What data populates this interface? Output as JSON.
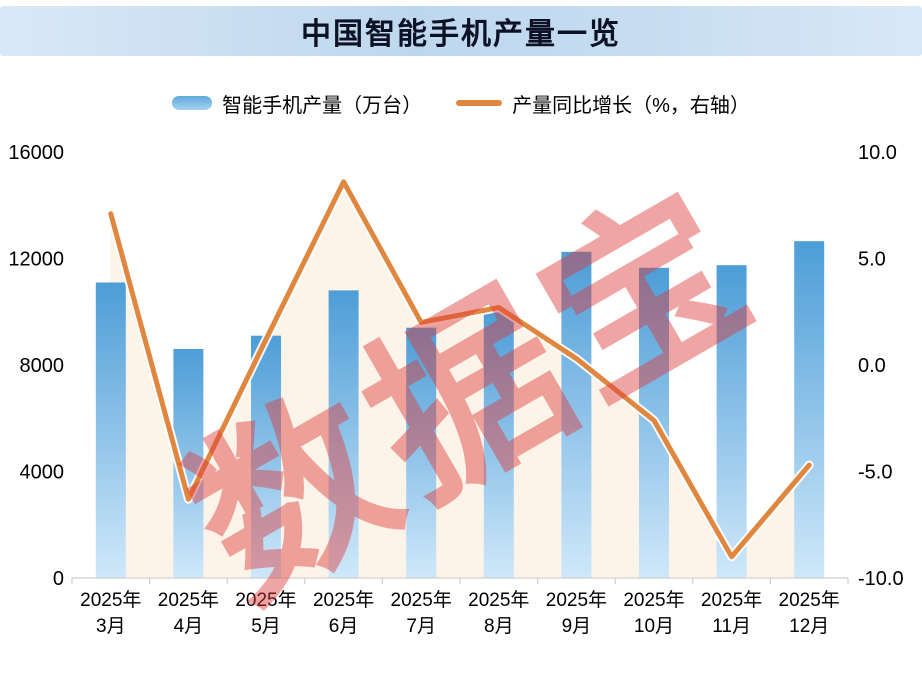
{
  "title": "中国智能手机产量一览",
  "legend": {
    "bar_label": "智能手机产量（万台）",
    "line_label": "产量同比增长（%，右轴）"
  },
  "watermark": "数据宝",
  "colors": {
    "bar_top": "#4d9dd7",
    "bar_bottom": "#cfe8fa",
    "line": "#e0873f",
    "line_casing": "#ffffff",
    "area_fill": "rgba(251,242,228,0.85)",
    "axis_line": "#c6c6c6",
    "tick_text": "#000000"
  },
  "chart_data": {
    "type": "bar+line",
    "title": "中国智能手机产量一览",
    "categories": [
      {
        "year": "2025年",
        "month": "3月"
      },
      {
        "year": "2025年",
        "month": "4月"
      },
      {
        "year": "2025年",
        "month": "5月"
      },
      {
        "year": "2025年",
        "month": "6月"
      },
      {
        "year": "2025年",
        "month": "7月"
      },
      {
        "year": "2025年",
        "month": "8月"
      },
      {
        "year": "2025年",
        "month": "9月"
      },
      {
        "year": "2025年",
        "month": "10月"
      },
      {
        "year": "2025年",
        "month": "11月"
      },
      {
        "year": "2025年",
        "month": "12月"
      }
    ],
    "series": [
      {
        "name": "智能手机产量（万台）",
        "type": "bar",
        "axis": "left",
        "values": [
          11100,
          8600,
          9100,
          10800,
          9400,
          10000,
          12250,
          11650,
          11750,
          12650
        ]
      },
      {
        "name": "产量同比增长（%，右轴）",
        "type": "line",
        "axis": "right",
        "values": [
          7.1,
          -6.3,
          1.2,
          8.6,
          2.0,
          2.7,
          0.3,
          -2.6,
          -9.0,
          -4.7
        ]
      }
    ],
    "left_axis": {
      "min": 0,
      "max": 16000,
      "ticks": [
        0,
        4000,
        8000,
        12000,
        16000
      ],
      "tick_labels": [
        "0",
        "4000",
        "8000",
        "12000",
        "16000"
      ]
    },
    "right_axis": {
      "min": -10,
      "max": 10,
      "ticks": [
        -10,
        -5,
        0,
        5,
        10
      ],
      "tick_labels": [
        "-10.0",
        "-5.0",
        "0.0",
        "5.0",
        "10.0"
      ]
    },
    "grid": false,
    "legend_position": "top"
  }
}
